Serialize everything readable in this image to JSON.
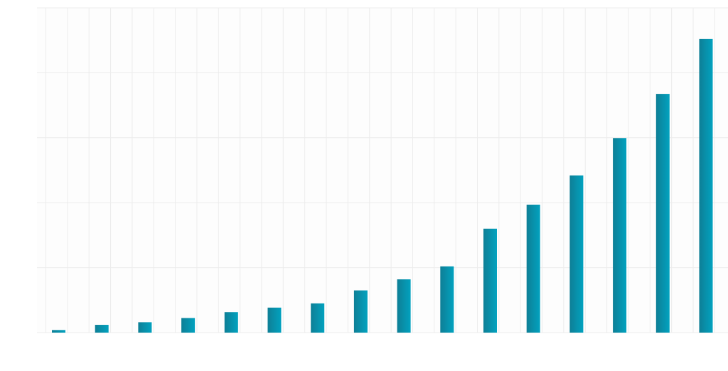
{
  "chart_data": {
    "type": "bar",
    "title": "",
    "xlabel": "",
    "ylabel": "",
    "categories": [
      "",
      "",
      "",
      "",
      "",
      "",
      "",
      "",
      "",
      "",
      "",
      "",
      "",
      "",
      "",
      ""
    ],
    "values": [
      0.8,
      2.4,
      3.2,
      4.5,
      6.3,
      7.7,
      9.0,
      13.0,
      16.4,
      20.4,
      32.0,
      39.4,
      48.4,
      59.9,
      73.5,
      90.4
    ],
    "ylim": [
      0,
      100
    ],
    "grid": true,
    "legend": "none",
    "colors": {
      "bar_start": "#0e7f96",
      "bar_end": "#02a2bf",
      "plot_background": "#fdfdfd",
      "grid_line": "#ececec"
    }
  }
}
